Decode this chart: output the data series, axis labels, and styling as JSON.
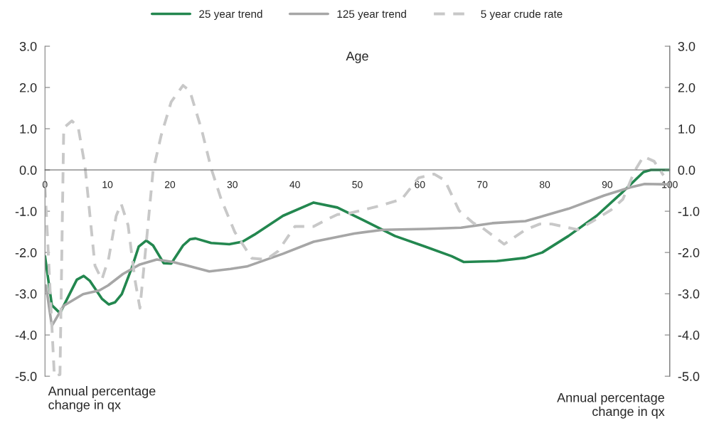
{
  "chart_data": {
    "type": "line",
    "xlabel": "Age",
    "annotations": [
      "Annual percentage\nchange in qx",
      "Annual percentage\nchange in qx"
    ],
    "xlim": [
      0,
      100
    ],
    "xticks": [
      0,
      10,
      20,
      30,
      40,
      50,
      60,
      70,
      80,
      90,
      100
    ],
    "ylim": [
      -5,
      3
    ],
    "yticks": [
      {
        "value": -5,
        "label": "-5.0"
      },
      {
        "value": -4,
        "label": "-4.0"
      },
      {
        "value": -3,
        "label": "-3.0"
      },
      {
        "value": -2,
        "label": "-2.0"
      },
      {
        "value": -1,
        "label": "-1.0"
      },
      {
        "value": 0,
        "label": "0.0"
      },
      {
        "value": 1,
        "label": "1.0"
      },
      {
        "value": 2,
        "label": "2.0"
      },
      {
        "value": 3,
        "label": "3.0"
      }
    ],
    "y2lim": [
      -5,
      3
    ],
    "y2ticks": [
      {
        "value": -5,
        "label": "-5.0"
      },
      {
        "value": -4,
        "label": "-4.0"
      },
      {
        "value": -3,
        "label": "-3.0"
      },
      {
        "value": -2,
        "label": "-2.0"
      },
      {
        "value": -1,
        "label": "-1.0"
      },
      {
        "value": 0,
        "label": "0.0"
      },
      {
        "value": 1,
        "label": "1.0"
      },
      {
        "value": 2,
        "label": "2.0"
      },
      {
        "value": 3,
        "label": "3.0"
      }
    ],
    "legend": "top",
    "grid": false,
    "marker": "none",
    "series": [
      {
        "name": "25 year trend",
        "color": "#23874f",
        "line_style": "solid",
        "x": [
          0,
          1.1,
          2.4,
          5.1,
          6.2,
          7.2,
          9.1,
          10.2,
          11.2,
          12.3,
          13.9,
          15.0,
          16.2,
          17.3,
          19.0,
          20.2,
          22.1,
          23.2,
          24.1,
          26.6,
          29.5,
          31.6,
          33.5,
          38.1,
          43.0,
          46.8,
          51.0,
          56.0,
          60.9,
          65.1,
          67.0,
          72.3,
          76.9,
          79.6,
          83.8,
          88.3,
          92.5,
          95.8,
          97.0,
          100
        ],
        "values": [
          -2.09,
          -3.28,
          -3.47,
          -2.66,
          -2.57,
          -2.69,
          -3.12,
          -3.26,
          -3.21,
          -3.01,
          -2.37,
          -1.86,
          -1.71,
          -1.83,
          -2.26,
          -2.27,
          -1.83,
          -1.68,
          -1.66,
          -1.77,
          -1.8,
          -1.74,
          -1.57,
          -1.11,
          -0.79,
          -0.91,
          -1.22,
          -1.6,
          -1.86,
          -2.09,
          -2.23,
          -2.21,
          -2.13,
          -2.0,
          -1.6,
          -1.11,
          -0.53,
          -0.05,
          0.0,
          0.0
        ]
      },
      {
        "name": "125 year trend",
        "color": "#a6a6a6",
        "line_style": "solid",
        "x": [
          0.15,
          1.1,
          3.0,
          6.1,
          8.7,
          10.1,
          12.5,
          15.2,
          17.9,
          20.5,
          26.3,
          29.7,
          32.3,
          38.1,
          43.0,
          49.5,
          54.1,
          60.9,
          66.6,
          71.6,
          76.9,
          83.8,
          89.5,
          93.7,
          96.0,
          100
        ],
        "values": [
          -2.8,
          -3.78,
          -3.29,
          -3.01,
          -2.92,
          -2.8,
          -2.52,
          -2.29,
          -2.17,
          -2.23,
          -2.46,
          -2.4,
          -2.34,
          -2.03,
          -1.74,
          -1.54,
          -1.45,
          -1.43,
          -1.4,
          -1.29,
          -1.24,
          -0.94,
          -0.62,
          -0.42,
          -0.34,
          -0.35
        ]
      },
      {
        "name": "5 year crude rate",
        "color": "#c8c8c8",
        "line_style": "dashed",
        "x": [
          0,
          1.5,
          2.4,
          3.0,
          4.3,
          5.3,
          6.4,
          8.0,
          9.1,
          10.2,
          11.4,
          12.2,
          13.3,
          14.4,
          15.2,
          16.3,
          17.3,
          18.6,
          20.2,
          22.1,
          23.2,
          25.1,
          26.6,
          28.2,
          30.4,
          33.1,
          35.4,
          37.3,
          40.0,
          43.0,
          45.1,
          46.8,
          48.7,
          53.3,
          57.1,
          59.8,
          62.3,
          64.0,
          66.3,
          68.5,
          70.0,
          73.5,
          76.9,
          79.2,
          81.1,
          85.3,
          87.6,
          90.6,
          92.5,
          94.4,
          95.8,
          97.5,
          99.0
        ],
        "values": [
          -0.4,
          -5.0,
          -4.96,
          1.02,
          1.19,
          1.05,
          0.1,
          -2.32,
          -2.66,
          -2.14,
          -1.11,
          -0.82,
          -1.34,
          -2.66,
          -3.35,
          -1.63,
          -0.02,
          0.84,
          1.65,
          2.05,
          1.91,
          0.96,
          0.04,
          -0.71,
          -1.51,
          -2.14,
          -2.17,
          -1.97,
          -1.37,
          -1.37,
          -1.2,
          -1.08,
          -1.05,
          -0.88,
          -0.71,
          -0.19,
          -0.1,
          -0.25,
          -0.99,
          -1.28,
          -1.4,
          -1.8,
          -1.45,
          -1.31,
          -1.31,
          -1.45,
          -1.25,
          -0.97,
          -0.71,
          -0.02,
          0.33,
          0.21,
          -0.13
        ]
      }
    ]
  }
}
